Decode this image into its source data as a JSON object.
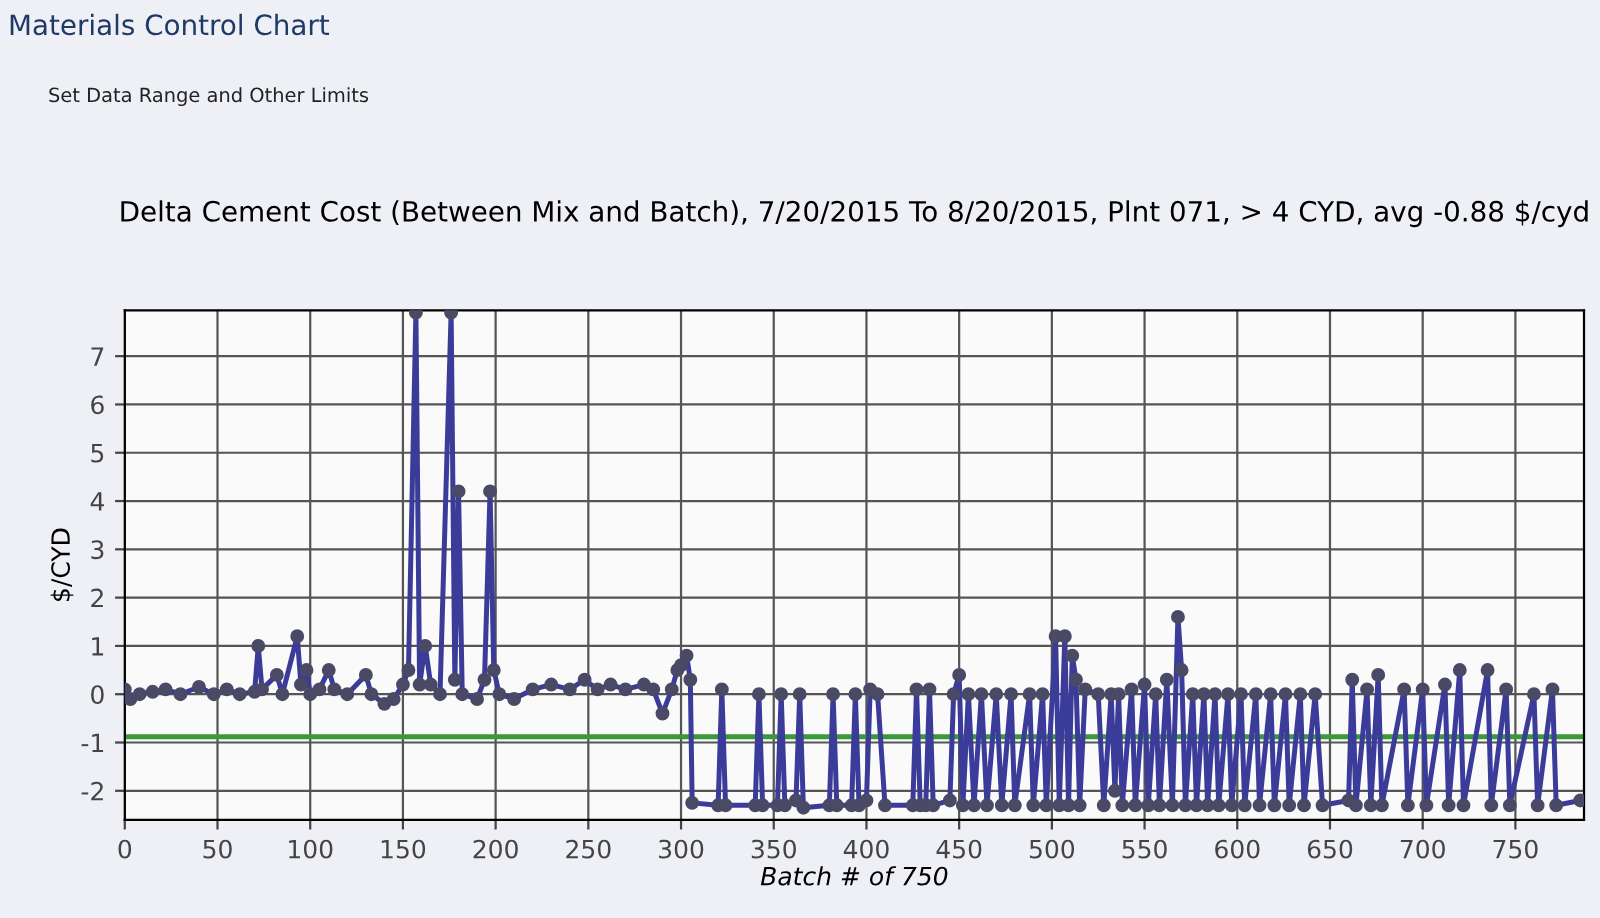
{
  "chart_data": {
    "type": "line",
    "title": "Delta Cement Cost (Between Mix and Batch), 7/20/2015 To 8/20/2015, Plnt 071, > 4 CYD, avg -0.88 $/cyd",
    "xlabel": "Batch # of 750",
    "ylabel": "$/CYD",
    "annotations": [
      "Materials Control Chart",
      "Set Data Range and Other Limits"
    ],
    "series": [
      {
        "color": "#3b3b9a",
        "x": [
          0,
          3,
          8,
          15,
          22,
          30,
          40,
          48,
          55,
          62,
          70,
          72,
          74,
          82,
          85,
          93,
          95,
          98,
          100,
          105,
          110,
          113,
          120,
          130,
          133,
          140,
          145,
          150,
          153,
          157,
          159,
          162,
          165,
          170,
          176,
          178,
          180,
          182,
          190,
          194,
          197,
          199,
          202,
          210,
          220,
          230,
          240,
          248,
          255,
          262,
          270,
          280,
          285,
          290,
          295,
          298,
          300,
          303,
          305,
          306,
          320,
          322,
          324,
          340,
          342,
          344,
          352,
          354,
          356,
          362,
          364,
          366,
          380,
          382,
          384,
          392,
          394,
          396,
          400,
          402,
          406,
          410,
          425,
          427,
          429,
          432,
          434,
          436,
          445,
          447,
          450,
          452,
          455,
          458,
          462,
          465,
          470,
          473,
          478,
          480,
          488,
          490,
          495,
          497,
          502,
          504,
          507,
          509,
          511,
          513,
          515,
          518,
          525,
          528,
          532,
          534,
          536,
          538,
          543,
          545,
          550,
          552,
          556,
          558,
          562,
          565,
          568,
          570,
          572,
          576,
          578,
          582,
          584,
          588,
          590,
          595,
          597,
          602,
          604,
          610,
          612,
          618,
          620,
          626,
          628,
          634,
          636,
          642,
          646,
          660,
          662,
          664,
          670,
          672,
          676,
          678,
          690,
          692,
          700,
          702,
          712,
          714,
          720,
          722,
          735,
          737,
          745,
          747,
          760,
          762,
          770,
          772,
          785
        ],
        "values": [
          0.1,
          -0.1,
          0,
          0.05,
          0.1,
          0,
          0.15,
          0,
          0.1,
          0,
          0.05,
          1.0,
          0.1,
          0.4,
          0,
          1.2,
          0.2,
          0.5,
          0,
          0.1,
          0.5,
          0.1,
          0,
          0.4,
          0,
          -0.2,
          -0.1,
          0.2,
          0.5,
          7.9,
          0.2,
          1.0,
          0.2,
          0,
          7.9,
          0.3,
          4.2,
          0,
          -0.1,
          0.3,
          4.2,
          0.5,
          0,
          -0.1,
          0.1,
          0.2,
          0.1,
          0.3,
          0.1,
          0.2,
          0.1,
          0.2,
          0.1,
          -0.4,
          0.1,
          0.5,
          0.6,
          0.8,
          0.3,
          -2.25,
          -2.3,
          0.1,
          -2.3,
          -2.3,
          0,
          -2.3,
          -2.3,
          0,
          -2.3,
          -2.2,
          0,
          -2.35,
          -2.3,
          0,
          -2.3,
          -2.3,
          0,
          -2.3,
          -2.2,
          0.1,
          0,
          -2.3,
          -2.3,
          0.1,
          -2.3,
          -2.3,
          0.1,
          -2.3,
          -2.2,
          0,
          0.4,
          -2.3,
          0,
          -2.3,
          0,
          -2.3,
          0,
          -2.3,
          0,
          -2.3,
          0,
          -2.3,
          0,
          -2.3,
          1.2,
          -2.3,
          1.2,
          -2.3,
          0.8,
          0.3,
          -2.3,
          0.1,
          0,
          -2.3,
          0,
          -2.0,
          0,
          -2.3,
          0.1,
          -2.3,
          0.2,
          -2.3,
          0,
          -2.3,
          0.3,
          -2.3,
          1.6,
          0.5,
          -2.3,
          0,
          -2.3,
          0,
          -2.3,
          0,
          -2.3,
          0,
          -2.3,
          0,
          -2.3,
          0,
          -2.3,
          0,
          -2.3,
          0,
          -2.3,
          0,
          -2.3,
          0,
          -2.3,
          -2.2,
          0.3,
          -2.3,
          0.1,
          -2.3,
          0.4,
          -2.3,
          0.1,
          -2.3,
          0.1,
          -2.3,
          0.2,
          -2.3,
          0.5,
          -2.3,
          0.5,
          -2.3,
          0.1,
          -2.3,
          0,
          -2.3,
          0.1,
          -2.3,
          -2.2
        ]
      }
    ],
    "marker": "circle",
    "line_style": "solid",
    "xlim": [
      0,
      787
    ],
    "xticks": [
      0,
      50,
      100,
      150,
      200,
      250,
      300,
      350,
      400,
      450,
      500,
      550,
      600,
      650,
      700,
      750
    ],
    "ylim": [
      -2.6,
      7.95
    ],
    "yticks": [
      -2,
      -1,
      0,
      1,
      2,
      3,
      4,
      5,
      6,
      7
    ],
    "ref_lines": [
      {
        "axis": "y",
        "value": -0.88,
        "color": "#3a9a3a"
      }
    ],
    "grid": true
  }
}
